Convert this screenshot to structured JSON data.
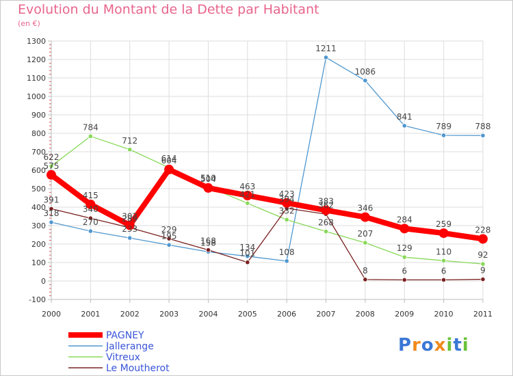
{
  "chart_data": {
    "type": "line",
    "title": "Evolution du Montant de la Dette par Habitant",
    "subtitle": "(en €)",
    "x": [
      "2000",
      "2001",
      "2002",
      "2003",
      "2004",
      "2005",
      "2006",
      "2007",
      "2008",
      "2009",
      "2010",
      "2011"
    ],
    "ylim": [
      -100,
      1300
    ],
    "yticks": [
      -100,
      0,
      100,
      200,
      300,
      400,
      500,
      600,
      700,
      800,
      900,
      1000,
      1100,
      1200,
      1300
    ],
    "grid": true,
    "legend_position": "bottom-left",
    "series": [
      {
        "name": "PAGNEY",
        "color": "#ff0000",
        "values": [
          575,
          415,
          302,
          604,
          504,
          463,
          423,
          383,
          346,
          284,
          259,
          228
        ]
      },
      {
        "name": "Jallerange",
        "color": "#4f97cf",
        "values": [
          318,
          270,
          233,
          195,
          158,
          134,
          108,
          1211,
          1086,
          841,
          789,
          788
        ]
      },
      {
        "name": "Vitreux",
        "color": "#88d858",
        "values": [
          622,
          784,
          712,
          614,
          510,
          421,
          332,
          268,
          207,
          129,
          110,
          92
        ]
      },
      {
        "name": "Le Moutherot",
        "color": "#7a2020",
        "values": [
          391,
          340,
          289,
          229,
          168,
          101,
          394,
          362,
          8,
          6,
          6,
          9
        ]
      }
    ]
  },
  "logo": {
    "text": "Proxiti",
    "letters": [
      {
        "ch": "P",
        "color": "#3b78d6"
      },
      {
        "ch": "r",
        "color": "#f08a1c"
      },
      {
        "ch": "o",
        "color": "#3b78d6"
      },
      {
        "ch": "x",
        "color": "#f08a1c"
      },
      {
        "ch": "i",
        "color": "#69c23a"
      },
      {
        "ch": "t",
        "color": "#3b78d6"
      },
      {
        "ch": "i",
        "color": "#69c23a"
      }
    ]
  }
}
